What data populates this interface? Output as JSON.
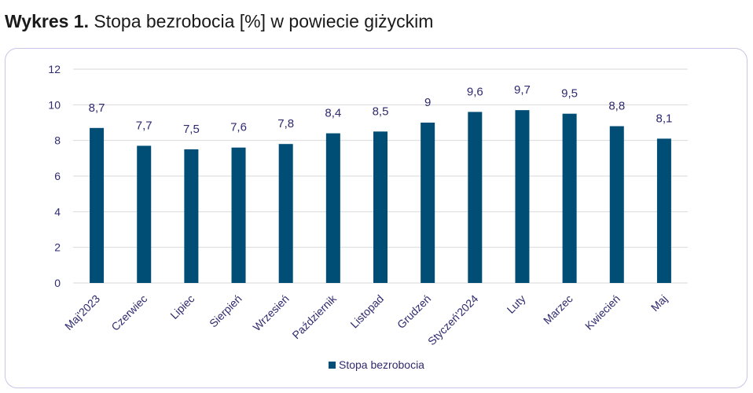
{
  "figure": {
    "title_bold": "Wykres 1.",
    "title_rest": " Stopa bezrobocia [%] w powiecie giżyckim"
  },
  "chart_data": {
    "type": "bar",
    "categories": [
      "Maj'2023",
      "Czerwiec",
      "Lipiec",
      "Sierpień",
      "Wrzesień",
      "Październik",
      "Listopad",
      "Grudzeń",
      "Styczeń'2024",
      "Luty",
      "Marzec",
      "Kwiecień",
      "Maj"
    ],
    "series": [
      {
        "name": "Stopa bezrobocia",
        "values": [
          8.7,
          7.7,
          7.5,
          7.6,
          7.8,
          8.4,
          8.5,
          9,
          9.6,
          9.7,
          9.5,
          8.8,
          8.1
        ],
        "labels": [
          "8,7",
          "7,7",
          "7,5",
          "7,6",
          "7,8",
          "8,4",
          "8,5",
          "9",
          "9,6",
          "9,7",
          "9,5",
          "8,8",
          "8,1"
        ],
        "color": "#004e75"
      }
    ],
    "yticks": [
      0,
      2,
      4,
      6,
      8,
      10,
      12
    ],
    "ylim": [
      0,
      12
    ],
    "grid": true,
    "gridColor": "#d9d9d9",
    "legend": "bottom"
  }
}
